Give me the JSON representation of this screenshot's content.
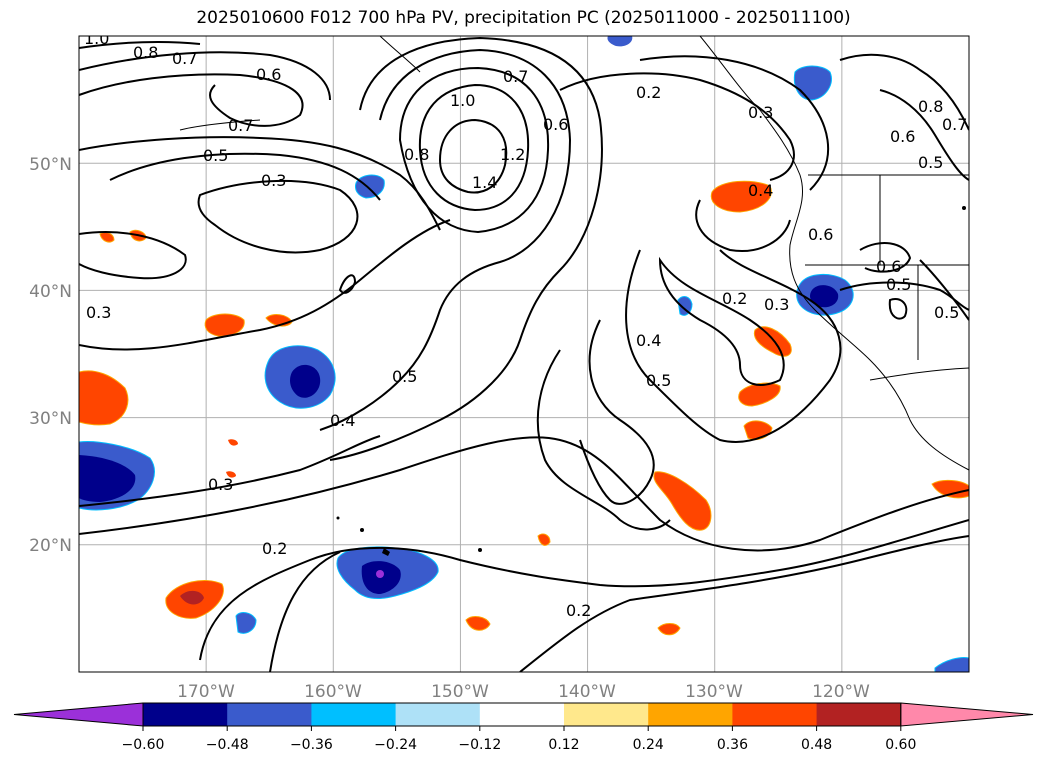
{
  "title": "2025010600 F012 700 hPa PV, precipitation PC (2025011000 - 2025011100)",
  "map": {
    "lon_range": [
      -180,
      -110
    ],
    "lat_range": [
      10,
      60
    ],
    "lon_ticks": [
      "170°W",
      "160°W",
      "150°W",
      "140°W",
      "130°W",
      "120°W"
    ],
    "lat_ticks": [
      "20°N",
      "30°N",
      "40°N",
      "50°N"
    ],
    "grid": true,
    "contour_labels": [
      "1.0",
      "0.8",
      "0.7",
      "0.6",
      "0.7",
      "0.5",
      "0.3",
      "1.0",
      "0.8",
      "1.4",
      "1.2",
      "0.7",
      "0.6",
      "0.2",
      "0.3",
      "0.4",
      "0.8",
      "0.7",
      "0.6",
      "0.5",
      "0.6",
      "0.6",
      "0.5",
      "0.5",
      "0.2",
      "0.3",
      "0.4",
      "0.5",
      "0.5",
      "0.4",
      "0.3",
      "0.2",
      "0.2",
      "0.3"
    ]
  },
  "colorbar": {
    "colors": [
      "#9b30d9",
      "#00008b",
      "#3a5bcc",
      "#00bfff",
      "#aee1f7",
      "#ffffff",
      "#ffe88c",
      "#ffa500",
      "#ff4500",
      "#b22222",
      "#ff88aa"
    ],
    "tick_labels": [
      "−0.60",
      "−0.48",
      "−0.36",
      "−0.24",
      "−0.12",
      "0.12",
      "0.24",
      "0.36",
      "0.48",
      "0.60"
    ]
  }
}
